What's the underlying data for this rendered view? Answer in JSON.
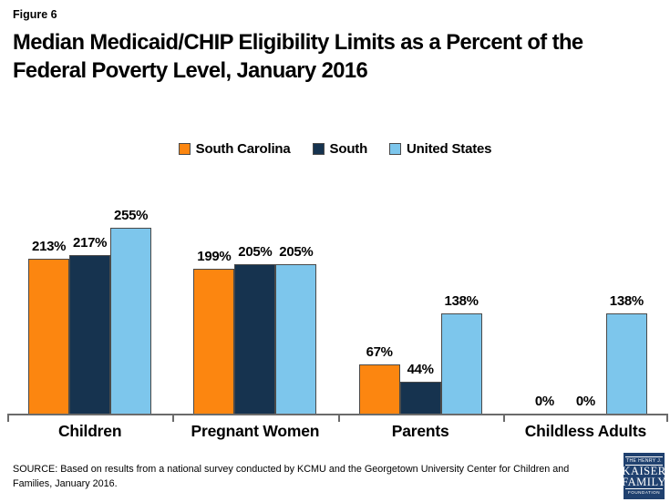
{
  "figure_label": "Figure 6",
  "title_lines": [
    "Median Medicaid/CHIP Eligibility Limits as a Percent of the",
    "Federal Poverty Level, January 2016"
  ],
  "chart_data": {
    "type": "bar",
    "title": "Median Medicaid/CHIP Eligibility Limits as a Percent of the Federal Poverty Level, January 2016",
    "categories": [
      "Children",
      "Pregnant Women",
      "Parents",
      "Childless Adults"
    ],
    "series": [
      {
        "name": "South Carolina",
        "color": "#FC8610",
        "border_color": "#4A4A4A",
        "values": [
          213,
          199,
          67,
          0
        ]
      },
      {
        "name": "South",
        "color": "#16334F",
        "border_color": "#4A4A4A",
        "values": [
          217,
          205,
          44,
          0
        ]
      },
      {
        "name": "United States",
        "color": "#7DC6EC",
        "border_color": "#4A4A4A",
        "values": [
          255,
          205,
          138,
          138
        ]
      }
    ],
    "value_suffix": "%",
    "value_labels_shown": true,
    "xlabel": "",
    "ylabel": "",
    "ylim": [
      0,
      255
    ],
    "grid": false,
    "legend_position": "top-center",
    "axis_color": "#6B6B6B"
  },
  "source_note": "SOURCE: Based on results from a national survey conducted by KCMU and the Georgetown University Center for Children and Families, January 2016.",
  "logo": {
    "name": "The Henry J. Kaiser Family Foundation",
    "lines": [
      "THE HENRY J.",
      "KAISER",
      "FAMILY",
      "FOUNDATION"
    ],
    "bg_color": "#20416F"
  }
}
